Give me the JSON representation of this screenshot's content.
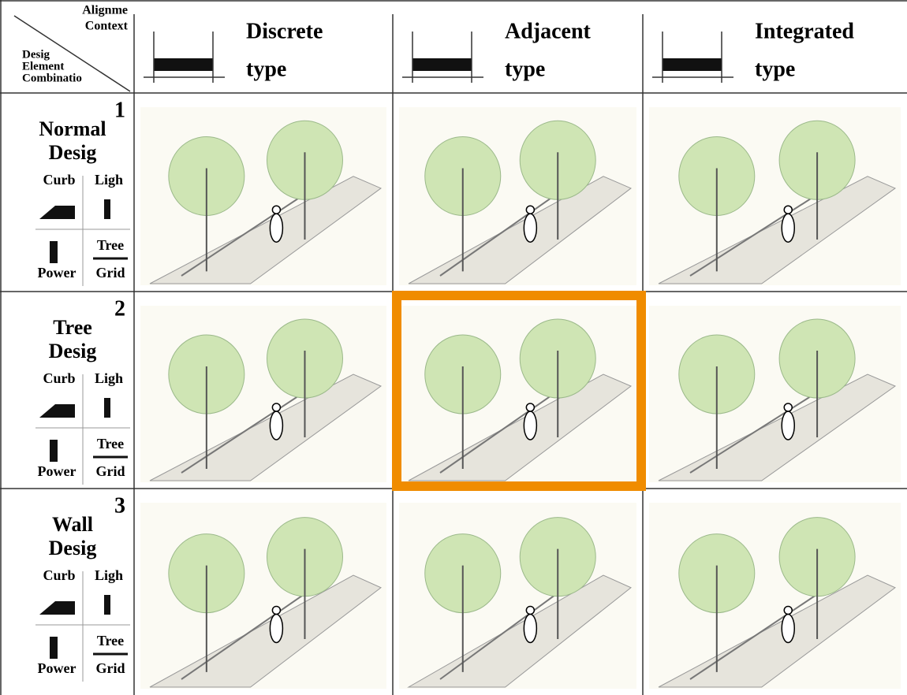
{
  "corner": {
    "top": [
      "Alignme",
      "Context"
    ],
    "bottom": [
      "Desig",
      "Element",
      "Combinatio"
    ]
  },
  "columns": [
    {
      "name": "Discrete",
      "suffix": "type"
    },
    {
      "name": "Adjacent",
      "suffix": "type"
    },
    {
      "name": "Integrated",
      "suffix": "type"
    }
  ],
  "rows": [
    {
      "number": "1",
      "name": [
        "Normal",
        "Desig"
      ],
      "icons": [
        "Curb",
        "Ligh",
        "Power",
        "Tree",
        "Grid"
      ]
    },
    {
      "number": "2",
      "name": [
        "Tree",
        "Desig"
      ],
      "icons": [
        "Curb",
        "Ligh",
        "Power",
        "Tree",
        "Grid"
      ]
    },
    {
      "number": "3",
      "name": [
        "Wall",
        "Desig"
      ],
      "icons": [
        "Curb",
        "Ligh",
        "Power",
        "Tree",
        "Grid"
      ]
    }
  ]
}
